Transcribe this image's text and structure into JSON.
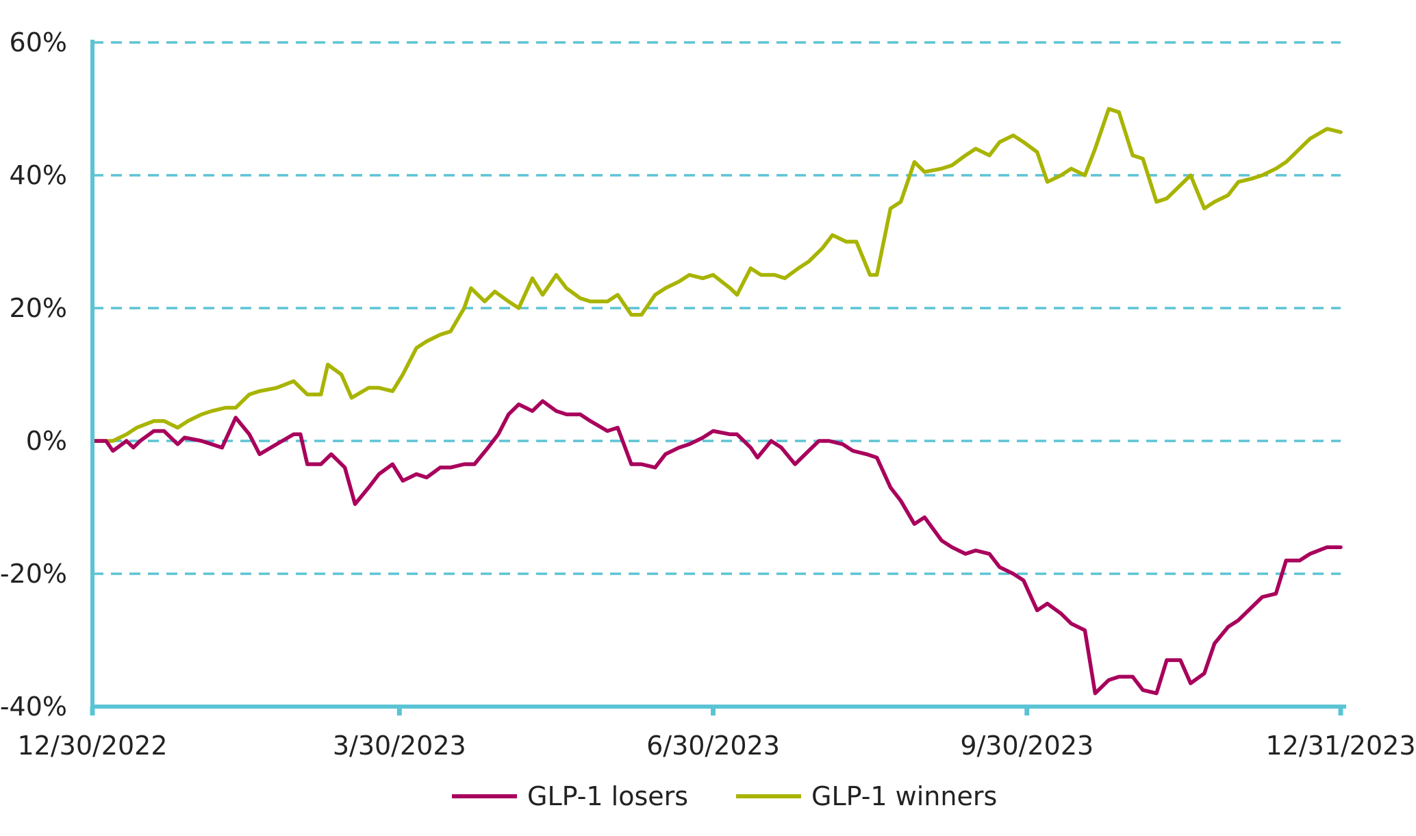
{
  "chart_data": {
    "type": "line",
    "x_ticks": [
      "12/30/2022",
      "3/30/2023",
      "6/30/2023",
      "9/30/2023",
      "12/31/2023"
    ],
    "y_ticks": [
      "60%",
      "40%",
      "20%",
      "0%",
      "-20%",
      "-40%"
    ],
    "ylim": [
      -40,
      60
    ],
    "x_range": [
      "12/30/2022",
      "12/31/2023"
    ],
    "grid": "dashed horizontal",
    "legend_position": "bottom",
    "colors": {
      "axis": "#5bc4d4",
      "grid": "#5bc4d4",
      "losers": "#a8005c",
      "winners": "#a8b400"
    },
    "series": [
      {
        "name": "GLP-1 losers",
        "color": "#a8005c",
        "points": [
          [
            "12/30/2022",
            0
          ],
          [
            "1/3/2023",
            0
          ],
          [
            "1/5/2023",
            -1.5
          ],
          [
            "1/9/2023",
            0
          ],
          [
            "1/11/2023",
            -1
          ],
          [
            "1/13/2023",
            0
          ],
          [
            "1/17/2023",
            1.5
          ],
          [
            "1/20/2023",
            1.5
          ],
          [
            "1/24/2023",
            -0.5
          ],
          [
            "1/26/2023",
            0.5
          ],
          [
            "1/31/2023",
            0
          ],
          [
            "2/6/2023",
            -1
          ],
          [
            "2/10/2023",
            3.5
          ],
          [
            "2/14/2023",
            1
          ],
          [
            "2/17/2023",
            -2
          ],
          [
            "2/22/2023",
            -0.5
          ],
          [
            "2/27/2023",
            1
          ],
          [
            "3/1/2023",
            1
          ],
          [
            "3/3/2023",
            -3.5
          ],
          [
            "3/7/2023",
            -3.5
          ],
          [
            "3/10/2023",
            -2
          ],
          [
            "3/14/2023",
            -4
          ],
          [
            "3/17/2023",
            -9.5
          ],
          [
            "3/21/2023",
            -7
          ],
          [
            "3/24/2023",
            -5
          ],
          [
            "3/28/2023",
            -3.5
          ],
          [
            "3/31/2023",
            -6
          ],
          [
            "4/4/2023",
            -5
          ],
          [
            "4/7/2023",
            -5.5
          ],
          [
            "4/11/2023",
            -4
          ],
          [
            "4/14/2023",
            -4
          ],
          [
            "4/18/2023",
            -3.5
          ],
          [
            "4/21/2023",
            -3.5
          ],
          [
            "4/25/2023",
            -1
          ],
          [
            "4/28/2023",
            1
          ],
          [
            "5/1/2023",
            4
          ],
          [
            "5/4/2023",
            5.5
          ],
          [
            "5/8/2023",
            4.5
          ],
          [
            "5/11/2023",
            6
          ],
          [
            "5/15/2023",
            4.5
          ],
          [
            "5/18/2023",
            4
          ],
          [
            "5/22/2023",
            4
          ],
          [
            "5/25/2023",
            3
          ],
          [
            "5/30/2023",
            1.5
          ],
          [
            "6/2/2023",
            2
          ],
          [
            "6/6/2023",
            -3.5
          ],
          [
            "6/9/2023",
            -3.5
          ],
          [
            "6/13/2023",
            -4
          ],
          [
            "6/16/2023",
            -2
          ],
          [
            "6/20/2023",
            -1
          ],
          [
            "6/23/2023",
            -0.5
          ],
          [
            "6/27/2023",
            0.5
          ],
          [
            "6/30/2023",
            1.5
          ],
          [
            "7/5/2023",
            1
          ],
          [
            "7/7/2023",
            1
          ],
          [
            "7/11/2023",
            -1
          ],
          [
            "7/13/2023",
            -2.5
          ],
          [
            "7/17/2023",
            0
          ],
          [
            "7/20/2023",
            -1
          ],
          [
            "7/24/2023",
            -3.5
          ],
          [
            "7/27/2023",
            -2
          ],
          [
            "7/31/2023",
            0
          ],
          [
            "8/3/2023",
            0
          ],
          [
            "8/7/2023",
            -0.5
          ],
          [
            "8/10/2023",
            -1.5
          ],
          [
            "8/14/2023",
            -2
          ],
          [
            "8/17/2023",
            -2.5
          ],
          [
            "8/21/2023",
            -7
          ],
          [
            "8/24/2023",
            -9
          ],
          [
            "8/28/2023",
            -12.5
          ],
          [
            "8/31/2023",
            -11.5
          ],
          [
            "9/5/2023",
            -15
          ],
          [
            "9/8/2023",
            -16
          ],
          [
            "9/12/2023",
            -17
          ],
          [
            "9/15/2023",
            -16.5
          ],
          [
            "9/19/2023",
            -17
          ],
          [
            "9/22/2023",
            -19
          ],
          [
            "9/26/2023",
            -20
          ],
          [
            "9/29/2023",
            -21
          ],
          [
            "10/3/2023",
            -25.5
          ],
          [
            "10/6/2023",
            -24.5
          ],
          [
            "10/10/2023",
            -26
          ],
          [
            "10/13/2023",
            -27.5
          ],
          [
            "10/17/2023",
            -28.5
          ],
          [
            "10/20/2023",
            -38
          ],
          [
            "10/24/2023",
            -36
          ],
          [
            "10/27/2023",
            -35.5
          ],
          [
            "10/31/2023",
            -35.5
          ],
          [
            "11/3/2023",
            -37.5
          ],
          [
            "11/7/2023",
            -38
          ],
          [
            "11/10/2023",
            -33
          ],
          [
            "11/14/2023",
            -33
          ],
          [
            "11/17/2023",
            -36.5
          ],
          [
            "11/21/2023",
            -35
          ],
          [
            "11/24/2023",
            -30.5
          ],
          [
            "11/28/2023",
            -28
          ],
          [
            "12/1/2023",
            -27
          ],
          [
            "12/5/2023",
            -25
          ],
          [
            "12/8/2023",
            -23.5
          ],
          [
            "12/12/2023",
            -23
          ],
          [
            "12/15/2023",
            -18
          ],
          [
            "12/19/2023",
            -18
          ],
          [
            "12/22/2023",
            -17
          ],
          [
            "12/27/2023",
            -16
          ],
          [
            "12/31/2023",
            -16
          ]
        ]
      },
      {
        "name": "GLP-1 winners",
        "color": "#a8b400",
        "points": [
          [
            "12/30/2022",
            0
          ],
          [
            "1/3/2023",
            0
          ],
          [
            "1/5/2023",
            0
          ],
          [
            "1/9/2023",
            1
          ],
          [
            "1/12/2023",
            2
          ],
          [
            "1/17/2023",
            3
          ],
          [
            "1/20/2023",
            3
          ],
          [
            "1/24/2023",
            2
          ],
          [
            "1/27/2023",
            3
          ],
          [
            "1/31/2023",
            4
          ],
          [
            "2/3/2023",
            4.5
          ],
          [
            "2/7/2023",
            5
          ],
          [
            "2/10/2023",
            5
          ],
          [
            "2/14/2023",
            7
          ],
          [
            "2/17/2023",
            7.5
          ],
          [
            "2/22/2023",
            8
          ],
          [
            "2/27/2023",
            9
          ],
          [
            "3/1/2023",
            8
          ],
          [
            "3/3/2023",
            7
          ],
          [
            "3/7/2023",
            7
          ],
          [
            "3/9/2023",
            11.5
          ],
          [
            "3/13/2023",
            10
          ],
          [
            "3/16/2023",
            6.5
          ],
          [
            "3/21/2023",
            8
          ],
          [
            "3/24/2023",
            8
          ],
          [
            "3/28/2023",
            7.5
          ],
          [
            "3/31/2023",
            10
          ],
          [
            "4/4/2023",
            14
          ],
          [
            "4/7/2023",
            15
          ],
          [
            "4/11/2023",
            16
          ],
          [
            "4/14/2023",
            16.5
          ],
          [
            "4/18/2023",
            20
          ],
          [
            "4/20/2023",
            23
          ],
          [
            "4/24/2023",
            21
          ],
          [
            "4/27/2023",
            22.5
          ],
          [
            "5/1/2023",
            21
          ],
          [
            "5/4/2023",
            20
          ],
          [
            "5/8/2023",
            24.5
          ],
          [
            "5/11/2023",
            22
          ],
          [
            "5/15/2023",
            25
          ],
          [
            "5/18/2023",
            23
          ],
          [
            "5/22/2023",
            21.5
          ],
          [
            "5/25/2023",
            21
          ],
          [
            "5/30/2023",
            21
          ],
          [
            "6/2/2023",
            22
          ],
          [
            "6/6/2023",
            19
          ],
          [
            "6/9/2023",
            19
          ],
          [
            "6/13/2023",
            22
          ],
          [
            "6/16/2023",
            23
          ],
          [
            "6/20/2023",
            24
          ],
          [
            "6/23/2023",
            25
          ],
          [
            "6/27/2023",
            24.5
          ],
          [
            "6/30/2023",
            25
          ],
          [
            "7/5/2023",
            23
          ],
          [
            "7/7/2023",
            22
          ],
          [
            "7/11/2023",
            26
          ],
          [
            "7/14/2023",
            25
          ],
          [
            "7/18/2023",
            25
          ],
          [
            "7/21/2023",
            24.5
          ],
          [
            "7/25/2023",
            26
          ],
          [
            "7/28/2023",
            27
          ],
          [
            "8/1/2023",
            29
          ],
          [
            "8/4/2023",
            31
          ],
          [
            "8/8/2023",
            30
          ],
          [
            "8/11/2023",
            30
          ],
          [
            "8/15/2023",
            25
          ],
          [
            "8/17/2023",
            25
          ],
          [
            "8/21/2023",
            35
          ],
          [
            "8/24/2023",
            36
          ],
          [
            "8/28/2023",
            42
          ],
          [
            "8/31/2023",
            40.5
          ],
          [
            "9/5/2023",
            41
          ],
          [
            "9/8/2023",
            41.5
          ],
          [
            "9/12/2023",
            43
          ],
          [
            "9/15/2023",
            44
          ],
          [
            "9/19/2023",
            43
          ],
          [
            "9/22/2023",
            45
          ],
          [
            "9/26/2023",
            46
          ],
          [
            "9/29/2023",
            45
          ],
          [
            "10/3/2023",
            43.5
          ],
          [
            "10/6/2023",
            39
          ],
          [
            "10/10/2023",
            40
          ],
          [
            "10/13/2023",
            41
          ],
          [
            "10/17/2023",
            40
          ],
          [
            "10/20/2023",
            44
          ],
          [
            "10/24/2023",
            50
          ],
          [
            "10/27/2023",
            49.5
          ],
          [
            "10/31/2023",
            43
          ],
          [
            "11/3/2023",
            42.5
          ],
          [
            "11/7/2023",
            36
          ],
          [
            "11/10/2023",
            36.5
          ],
          [
            "11/14/2023",
            38.5
          ],
          [
            "11/17/2023",
            40
          ],
          [
            "11/21/2023",
            35
          ],
          [
            "11/24/2023",
            36
          ],
          [
            "11/28/2023",
            37
          ],
          [
            "12/1/2023",
            39
          ],
          [
            "12/5/2023",
            39.5
          ],
          [
            "12/8/2023",
            40
          ],
          [
            "12/12/2023",
            41
          ],
          [
            "12/15/2023",
            42
          ],
          [
            "12/19/2023",
            44
          ],
          [
            "12/22/2023",
            45.5
          ],
          [
            "12/27/2023",
            47
          ],
          [
            "12/31/2023",
            46.5
          ]
        ]
      }
    ]
  }
}
